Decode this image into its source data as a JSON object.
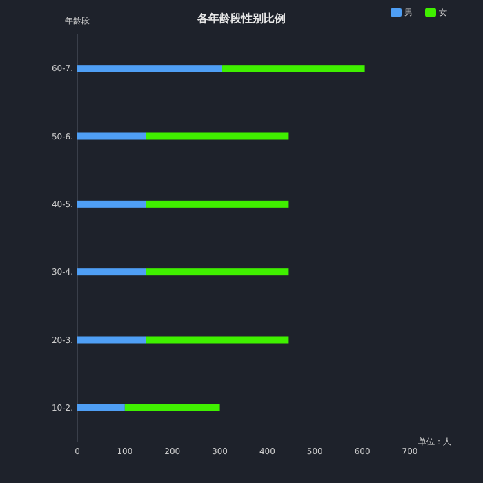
{
  "chart_data": {
    "type": "bar",
    "orientation": "horizontal",
    "stacked": true,
    "title": "各年龄段性别比例",
    "ylabel": "年龄段",
    "xlabel": "单位：人",
    "categories": [
      "60-7.",
      "50-6.",
      "40-5.",
      "30-4.",
      "20-3.",
      "10-2."
    ],
    "series": [
      {
        "name": "男",
        "color": "#4f9ff5",
        "values": [
          305,
          145,
          145,
          145,
          145,
          100
        ]
      },
      {
        "name": "女",
        "color": "#40f000",
        "values": [
          300,
          300,
          300,
          300,
          300,
          200
        ]
      }
    ],
    "xlim": [
      0,
      700
    ],
    "xticks": [
      0,
      100,
      200,
      300,
      400,
      500,
      600,
      700
    ],
    "grid": false,
    "legend": "top right"
  }
}
